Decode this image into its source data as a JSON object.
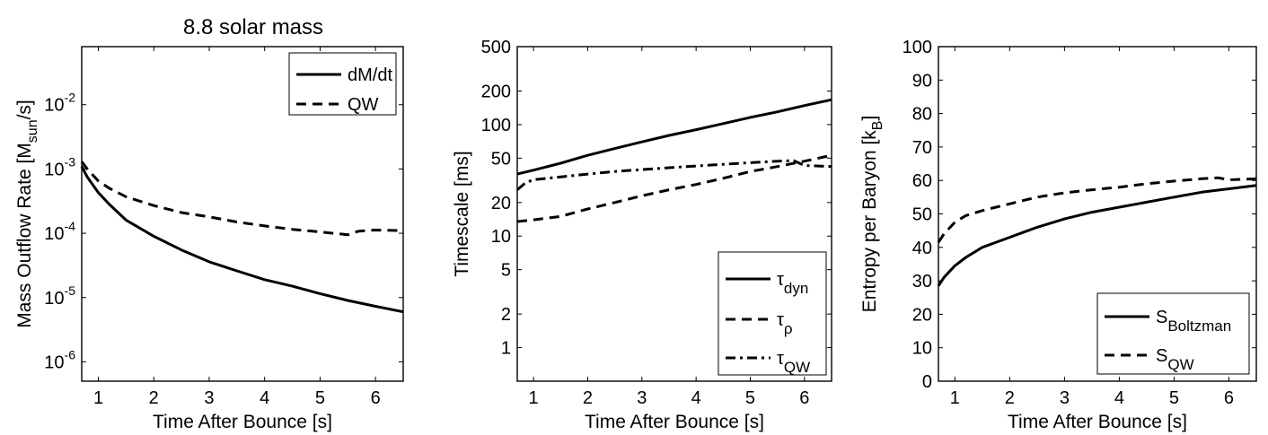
{
  "figure_title": "8.8 solar mass",
  "chart_data": [
    {
      "type": "line",
      "yscale": "log",
      "title": "8.8 solar mass",
      "xlabel": "Time After Bounce [s]",
      "ylabel": "Mass Outflow Rate",
      "ylabel_unit": "[M",
      "ylabel_unit_sub": "sun",
      "ylabel_unit_tail": "/s]",
      "xlim": [
        0.7,
        6.5
      ],
      "ylim": [
        5e-07,
        0.08
      ],
      "xticks": [
        1,
        2,
        3,
        4,
        5,
        6
      ],
      "xtick_labels": [
        "1",
        "2",
        "3",
        "4",
        "5",
        "6"
      ],
      "yticks": [
        1e-06,
        1e-05,
        0.0001,
        0.001,
        0.01
      ],
      "ytick_exps": [
        "-6",
        "-5",
        "-4",
        "-3",
        "-2"
      ],
      "ytick_base": "10",
      "legend_position": "top-right",
      "series": [
        {
          "name": "dM/dt",
          "dash": "solid",
          "x": [
            0.7,
            0.8,
            1.0,
            1.2,
            1.5,
            2.0,
            2.5,
            3.0,
            3.5,
            4.0,
            4.5,
            5.0,
            5.5,
            6.0,
            6.5
          ],
          "y": [
            0.0011,
            0.00075,
            0.00043,
            0.00028,
            0.00016,
            9e-05,
            5.5e-05,
            3.6e-05,
            2.6e-05,
            1.9e-05,
            1.5e-05,
            1.15e-05,
            9e-06,
            7.3e-06,
            6e-06
          ]
        },
        {
          "name": "QW",
          "dash": "dashed",
          "x": [
            0.7,
            0.8,
            1.0,
            1.2,
            1.5,
            2.0,
            2.5,
            3.0,
            3.5,
            4.0,
            4.5,
            5.0,
            5.5,
            5.7,
            6.0,
            6.5
          ],
          "y": [
            0.0013,
            0.001,
            0.00065,
            0.0005,
            0.00037,
            0.00027,
            0.00021,
            0.00018,
            0.00015,
            0.00013,
            0.000115,
            0.000105,
            9.5e-05,
            0.000108,
            0.000112,
            0.00011
          ]
        }
      ]
    },
    {
      "type": "line",
      "yscale": "log",
      "xlabel": "Time After Bounce [s]",
      "ylabel": "Timescale [ms]",
      "xlim": [
        0.7,
        6.5
      ],
      "ylim": [
        0.5,
        500
      ],
      "xticks": [
        1,
        2,
        3,
        4,
        5,
        6
      ],
      "xtick_labels": [
        "1",
        "2",
        "3",
        "4",
        "5",
        "6"
      ],
      "yticks": [
        1,
        2,
        5,
        10,
        20,
        50,
        100,
        200,
        500
      ],
      "ytick_labels": [
        "1",
        "2",
        "5",
        "10",
        "20",
        "50",
        "100",
        "200",
        "500"
      ],
      "legend_position": "bottom-right",
      "series": [
        {
          "name": "τ",
          "sub": "dyn",
          "dash": "solid",
          "x": [
            0.7,
            1.0,
            1.5,
            2.0,
            2.5,
            3.0,
            3.5,
            4.0,
            4.5,
            5.0,
            5.5,
            6.0,
            6.5
          ],
          "y": [
            36,
            39,
            45,
            53,
            61,
            70,
            80,
            90,
            102,
            116,
            130,
            148,
            167
          ]
        },
        {
          "name": "τ",
          "sub": "ρ",
          "dash": "dashed",
          "x": [
            0.7,
            1.0,
            1.5,
            2.0,
            2.5,
            3.0,
            3.5,
            4.0,
            4.5,
            5.0,
            5.5,
            6.0,
            6.5
          ],
          "y": [
            13.5,
            14,
            15,
            17.5,
            20,
            23,
            26,
            29,
            33,
            38,
            42,
            47,
            53
          ]
        },
        {
          "name": "τ",
          "sub": "QW",
          "dash": "dashdot",
          "x": [
            0.7,
            0.85,
            1.0,
            1.5,
            2.0,
            2.5,
            3.0,
            3.5,
            4.0,
            4.5,
            5.0,
            5.5,
            5.8,
            6.0,
            6.5
          ],
          "y": [
            26,
            30,
            32,
            34,
            36,
            38,
            39.5,
            41,
            42.5,
            44,
            45.5,
            47,
            47.5,
            43,
            42
          ]
        }
      ]
    },
    {
      "type": "line",
      "yscale": "linear",
      "xlabel": "Time After Bounce [s]",
      "ylabel": "Entropy per Baryon [k",
      "ylabel_sub": "B",
      "ylabel_tail": "]",
      "xlim": [
        0.7,
        6.5
      ],
      "ylim": [
        0,
        100
      ],
      "xticks": [
        1,
        2,
        3,
        4,
        5,
        6
      ],
      "xtick_labels": [
        "1",
        "2",
        "3",
        "4",
        "5",
        "6"
      ],
      "yticks": [
        0,
        10,
        20,
        30,
        40,
        50,
        60,
        70,
        80,
        90,
        100
      ],
      "ytick_labels": [
        "0",
        "10",
        "20",
        "30",
        "40",
        "50",
        "60",
        "70",
        "80",
        "90",
        "100"
      ],
      "legend_position": "bottom-right",
      "series": [
        {
          "name": "S",
          "sub": "Boltzman",
          "dash": "solid",
          "x": [
            0.7,
            0.8,
            1.0,
            1.2,
            1.5,
            2.0,
            2.5,
            3.0,
            3.5,
            4.0,
            4.5,
            5.0,
            5.5,
            6.0,
            6.5
          ],
          "y": [
            28.5,
            31,
            34.5,
            37,
            40,
            43,
            46,
            48.5,
            50.5,
            52,
            53.5,
            55,
            56.5,
            57.5,
            58.5
          ]
        },
        {
          "name": "S",
          "sub": "QW",
          "dash": "dashed",
          "x": [
            0.7,
            0.8,
            1.0,
            1.2,
            1.5,
            2.0,
            2.5,
            3.0,
            3.5,
            4.0,
            4.5,
            5.0,
            5.5,
            5.8,
            6.0,
            6.5
          ],
          "y": [
            41.5,
            44,
            47.5,
            49.5,
            51,
            53,
            55,
            56.3,
            57.2,
            58,
            59,
            59.8,
            60.5,
            60.8,
            60.2,
            60.5
          ]
        }
      ]
    }
  ]
}
